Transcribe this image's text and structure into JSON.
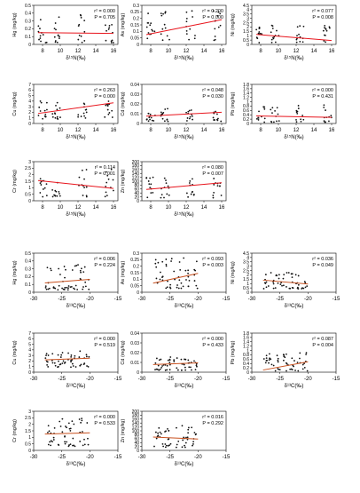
{
  "colors": {
    "axis": "#000000",
    "points": "#111111",
    "fit_n": "#e8141c",
    "fit_c": "#c8501e"
  },
  "figure": {
    "xlabel_n": "δ¹⁵N(‰)",
    "xlabel_c": "δ¹³C(‰)"
  },
  "chart_data": [
    {
      "type": "scatter",
      "group": "N",
      "ylabel": "Hg (mg/kg)",
      "stats_r2": "r² = 0.000",
      "stats_p": "P = 0.705",
      "xlim": [
        7,
        16.5
      ],
      "xticks": [
        8,
        10,
        12,
        14,
        16
      ],
      "ylim": [
        0,
        0.5
      ],
      "yticks": [
        0,
        0.1,
        0.2,
        0.3,
        0.4,
        0.5
      ],
      "fit": [
        [
          7.5,
          0.15
        ],
        [
          16,
          0.14
        ]
      ],
      "cloud": {
        "cx": [
          8,
          9.6,
          12.5,
          15.5
        ],
        "sx": 0.5,
        "ymin": 0.02,
        "ymax": 0.38,
        "n": 48,
        "seed": 11
      }
    },
    {
      "type": "scatter",
      "group": "N",
      "ylabel": "As (mg/kg)",
      "stats_r2": "r² = 0.200",
      "stats_p": "P = 0.000",
      "xlim": [
        7,
        16.5
      ],
      "xticks": [
        8,
        10,
        12,
        14,
        16
      ],
      "ylim": [
        0,
        0.3
      ],
      "yticks": [
        0,
        0.05,
        0.1,
        0.15,
        0.2,
        0.25,
        0.3
      ],
      "fit": [
        [
          7.5,
          0.075
        ],
        [
          16,
          0.19
        ]
      ],
      "cloud": {
        "cx": [
          8,
          9.6,
          12.5,
          15.5
        ],
        "sx": 0.5,
        "ymin": 0.03,
        "ymax": 0.27,
        "n": 50,
        "seed": 23
      }
    },
    {
      "type": "scatter",
      "group": "N",
      "ylabel": "Ni (mg/kg)",
      "stats_r2": "r² = 0.077",
      "stats_p": "P = 0.008",
      "xlim": [
        7,
        16.5
      ],
      "xticks": [
        8,
        10,
        12,
        14,
        16
      ],
      "ylim": [
        0,
        4.5
      ],
      "yticks": [
        0,
        0.5,
        1,
        1.5,
        2,
        2.5,
        3,
        3.5,
        4,
        4.5
      ],
      "fit": [
        [
          7.5,
          1.15
        ],
        [
          16,
          0.45
        ]
      ],
      "cloud": {
        "cx": [
          8,
          9.6,
          12.5,
          15.5
        ],
        "sx": 0.5,
        "ymin": 0.2,
        "ymax": 2.2,
        "n": 50,
        "seed": 37
      }
    },
    {
      "type": "scatter",
      "group": "N",
      "ylabel": "Cu (mg/kg)",
      "stats_r2": "r² = 0.263",
      "stats_p": "P = 0.000",
      "xlim": [
        7,
        16.5
      ],
      "xticks": [
        8,
        10,
        12,
        14,
        16
      ],
      "ylim": [
        0,
        7
      ],
      "yticks": [
        0,
        1,
        2,
        3,
        4,
        5,
        6,
        7
      ],
      "fit": [
        [
          7.5,
          1.8
        ],
        [
          16,
          3.7
        ]
      ],
      "cloud": {
        "cx": [
          8,
          9.6,
          12.5,
          15.5
        ],
        "sx": 0.5,
        "ymin": 0.8,
        "ymax": 4.0,
        "n": 50,
        "seed": 41
      }
    },
    {
      "type": "scatter",
      "group": "N",
      "ylabel": "Cd (mg/kg)",
      "stats_r2": "r² = 0.048",
      "stats_p": "P = 0.030",
      "xlim": [
        7,
        16.5
      ],
      "xticks": [
        8,
        10,
        12,
        14,
        16
      ],
      "ylim": [
        0,
        0.04
      ],
      "yticks": [
        0,
        0.01,
        0.02,
        0.03,
        0.04
      ],
      "fit": [
        [
          7.5,
          0.0075
        ],
        [
          16,
          0.0115
        ]
      ],
      "cloud": {
        "cx": [
          8,
          9.6,
          12.5,
          15.5
        ],
        "sx": 0.5,
        "ymin": 0.002,
        "ymax": 0.016,
        "n": 50,
        "seed": 53
      }
    },
    {
      "type": "scatter",
      "group": "N",
      "ylabel": "Pb (mg/kg)",
      "stats_r2": "r² = 0.000",
      "stats_p": "P = 0.431",
      "xlim": [
        7,
        16.5
      ],
      "xticks": [
        8,
        10,
        12,
        14,
        16
      ],
      "ylim": [
        0,
        1.8
      ],
      "yticks": [
        0,
        0.2,
        0.4,
        0.6,
        0.8,
        1,
        1.2,
        1.4,
        1.6,
        1.8
      ],
      "fit": [
        [
          7.5,
          0.35
        ],
        [
          16,
          0.28
        ]
      ],
      "cloud": {
        "cx": [
          8,
          9.6,
          12.5,
          15.5
        ],
        "sx": 0.5,
        "ymin": 0.05,
        "ymax": 0.9,
        "n": 48,
        "seed": 67
      }
    },
    {
      "type": "scatter",
      "group": "N",
      "ylabel": "Cr (mg/kg)",
      "stats_r2": "r² = 0.114",
      "stats_p": "P = 0.001",
      "xlim": [
        7,
        16.5
      ],
      "xticks": [
        8,
        10,
        12,
        14,
        16
      ],
      "ylim": [
        0,
        3
      ],
      "yticks": [
        0,
        0.5,
        1,
        1.5,
        2,
        2.5,
        3
      ],
      "fit": [
        [
          7.5,
          1.55
        ],
        [
          16,
          0.95
        ]
      ],
      "cloud": {
        "cx": [
          8,
          9.6,
          12.5,
          15.5
        ],
        "sx": 0.5,
        "ymin": 0.3,
        "ymax": 2.5,
        "n": 48,
        "seed": 71
      }
    },
    {
      "type": "scatter",
      "group": "N",
      "ylabel": "Zn (mg/kg)",
      "stats_r2": "r² = 0.080",
      "stats_p": "P = 0.007",
      "xlim": [
        7,
        16.5
      ],
      "xticks": [
        8,
        10,
        12,
        14,
        16
      ],
      "ylim": [
        0,
        200
      ],
      "yticks": [
        0,
        20,
        40,
        60,
        80,
        100,
        120,
        140,
        160,
        180,
        200
      ],
      "fit": [
        [
          7.5,
          58
        ],
        [
          16,
          92
        ]
      ],
      "cloud": {
        "cx": [
          8,
          9.6,
          12.5,
          15.5
        ],
        "sx": 0.5,
        "ymin": 15,
        "ymax": 130,
        "n": 48,
        "seed": 83
      }
    },
    {
      "type": "scatter",
      "group": "C",
      "ylabel": "Hg (mg/kg)",
      "stats_r2": "r² = 0.006",
      "stats_p": "P = 0.224",
      "xlim": [
        -30,
        -15
      ],
      "xticks": [
        -30,
        -25,
        -20,
        -15
      ],
      "ylim": [
        0,
        0.5
      ],
      "yticks": [
        0,
        0.1,
        0.2,
        0.3,
        0.4,
        0.5
      ],
      "fit": [
        [
          -28,
          0.12
        ],
        [
          -20,
          0.165
        ]
      ],
      "cloud": {
        "cx": [
          -27,
          -25,
          -23,
          -21
        ],
        "sx": 0.9,
        "ymin": 0.03,
        "ymax": 0.38,
        "n": 52,
        "seed": 97
      }
    },
    {
      "type": "scatter",
      "group": "C",
      "ylabel": "As (mg/kg)",
      "stats_r2": "r² = 0.093",
      "stats_p": "P = 0.003",
      "xlim": [
        -30,
        -15
      ],
      "xticks": [
        -30,
        -25,
        -20,
        -15
      ],
      "ylim": [
        0,
        0.3
      ],
      "yticks": [
        0,
        0.05,
        0.1,
        0.15,
        0.2,
        0.25,
        0.3
      ],
      "fit": [
        [
          -28,
          0.07
        ],
        [
          -20,
          0.145
        ]
      ],
      "cloud": {
        "cx": [
          -27,
          -25,
          -23,
          -21
        ],
        "sx": 0.9,
        "ymin": 0.03,
        "ymax": 0.27,
        "n": 52,
        "seed": 101
      }
    },
    {
      "type": "scatter",
      "group": "C",
      "ylabel": "Ni (mg/kg)",
      "stats_r2": "r² = 0.036",
      "stats_p": "P = 0.049",
      "xlim": [
        -30,
        -15
      ],
      "xticks": [
        -30,
        -25,
        -20,
        -15
      ],
      "ylim": [
        0,
        4.5
      ],
      "yticks": [
        0,
        0.5,
        1,
        1.5,
        2,
        2.5,
        3,
        3.5,
        4,
        4.5
      ],
      "fit": [
        [
          -28,
          1.4
        ],
        [
          -20,
          0.95
        ]
      ],
      "cloud": {
        "cx": [
          -27,
          -25,
          -23,
          -21
        ],
        "sx": 0.9,
        "ymin": 0.4,
        "ymax": 2.3,
        "n": 52,
        "seed": 113
      }
    },
    {
      "type": "scatter",
      "group": "C",
      "ylabel": "Cu (mg/kg)",
      "stats_r2": "r² = 0.000",
      "stats_p": "P = 0.519",
      "xlim": [
        -30,
        -15
      ],
      "xticks": [
        -30,
        -25,
        -20,
        -15
      ],
      "ylim": [
        0,
        7
      ],
      "yticks": [
        0,
        1,
        2,
        3,
        4,
        5,
        6,
        7
      ],
      "fit": [
        [
          -28,
          2.2
        ],
        [
          -20,
          2.5
        ]
      ],
      "cloud": {
        "cx": [
          -27,
          -25,
          -23,
          -21
        ],
        "sx": 0.9,
        "ymin": 0.9,
        "ymax": 3.8,
        "n": 52,
        "seed": 127
      }
    },
    {
      "type": "scatter",
      "group": "C",
      "ylabel": "Cd (mg/kg)",
      "stats_r2": "r² = 0.000",
      "stats_p": "P = 0.433",
      "xlim": [
        -30,
        -15
      ],
      "xticks": [
        -30,
        -25,
        -20,
        -15
      ],
      "ylim": [
        0,
        0.04
      ],
      "yticks": [
        0,
        0.01,
        0.02,
        0.03,
        0.04
      ],
      "fit": [
        [
          -28,
          0.0078
        ],
        [
          -20,
          0.0095
        ]
      ],
      "cloud": {
        "cx": [
          -27,
          -25,
          -23,
          -21
        ],
        "sx": 0.9,
        "ymin": 0.002,
        "ymax": 0.016,
        "n": 52,
        "seed": 131
      }
    },
    {
      "type": "scatter",
      "group": "C",
      "ylabel": "Pb (mg/kg)",
      "stats_r2": "r² = 0.087",
      "stats_p": "P = 0.004",
      "xlim": [
        -30,
        -15
      ],
      "xticks": [
        -30,
        -25,
        -20,
        -15
      ],
      "ylim": [
        0,
        1.8
      ],
      "yticks": [
        0,
        0.2,
        0.4,
        0.6,
        0.8,
        1,
        1.2,
        1.4,
        1.6,
        1.8
      ],
      "fit": [
        [
          -28,
          0.1
        ],
        [
          -20,
          0.48
        ]
      ],
      "cloud": {
        "cx": [
          -27,
          -25,
          -23,
          -21
        ],
        "sx": 0.9,
        "ymin": 0.05,
        "ymax": 0.9,
        "n": 52,
        "seed": 139
      }
    },
    {
      "type": "scatter",
      "group": "C",
      "ylabel": "Cr (mg/kg)",
      "stats_r2": "r² = 0.000",
      "stats_p": "P = 0.533",
      "xlim": [
        -30,
        -15
      ],
      "xticks": [
        -30,
        -25,
        -20,
        -15
      ],
      "ylim": [
        0,
        3
      ],
      "yticks": [
        0,
        0.5,
        1,
        1.5,
        2,
        2.5,
        3
      ],
      "fit": [
        [
          -28,
          1.25
        ],
        [
          -20,
          1.35
        ]
      ],
      "cloud": {
        "cx": [
          -27,
          -25,
          -23,
          -21
        ],
        "sx": 0.9,
        "ymin": 0.3,
        "ymax": 2.5,
        "n": 52,
        "seed": 149
      }
    },
    {
      "type": "scatter",
      "group": "C",
      "ylabel": "Zn (mg/kg)",
      "stats_r2": "r² = 0.016",
      "stats_p": "P = 0.292",
      "xlim": [
        -30,
        -15
      ],
      "xticks": [
        -30,
        -25,
        -20,
        -15
      ],
      "ylim": [
        0,
        200
      ],
      "yticks": [
        0,
        20,
        40,
        60,
        80,
        100,
        120,
        140,
        160,
        180,
        200
      ],
      "fit": [
        [
          -28,
          68
        ],
        [
          -20,
          58
        ]
      ],
      "cloud": {
        "cx": [
          -27,
          -25,
          -23,
          -21
        ],
        "sx": 0.9,
        "ymin": 15,
        "ymax": 130,
        "n": 52,
        "seed": 157
      }
    }
  ]
}
